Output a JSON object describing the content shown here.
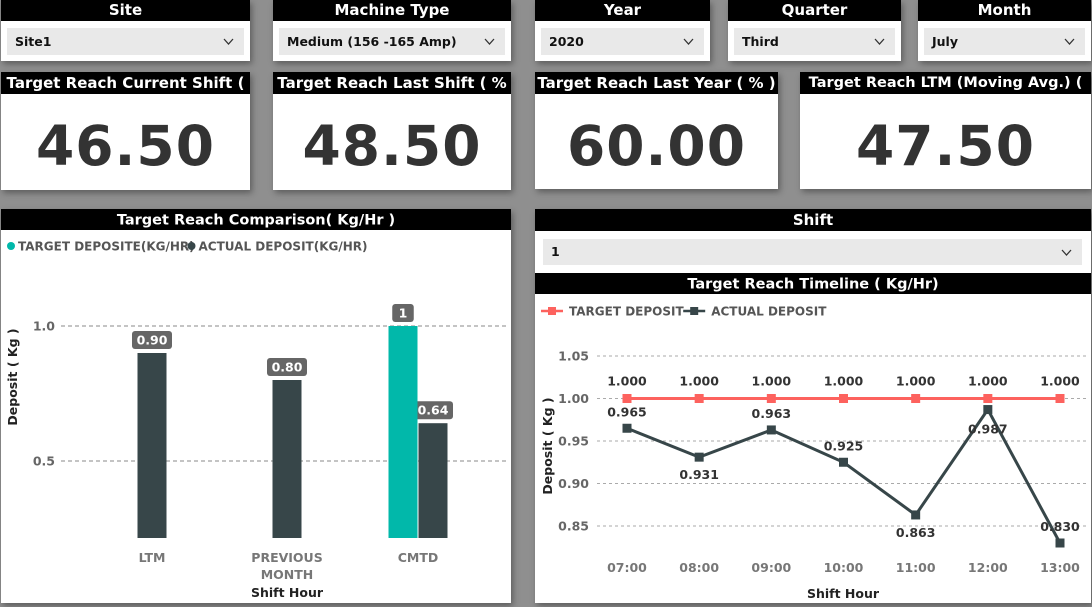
{
  "slicers": {
    "site": {
      "title": "Site",
      "value": "Site1"
    },
    "machine": {
      "title": "Machine Type",
      "value": "Medium (156 -165 Amp)"
    },
    "year": {
      "title": "Year",
      "value": "2020"
    },
    "quarter": {
      "title": "Quarter",
      "value": "Third"
    },
    "month": {
      "title": "Month",
      "value": "July"
    },
    "shift": {
      "title": "Shift",
      "value": "1"
    }
  },
  "kpis": {
    "current_shift": {
      "title": "Target Reach Current Shift ( % )",
      "value": "46.50"
    },
    "last_shift": {
      "title": "Target Reach Last Shift ( % )",
      "value": "48.50"
    },
    "last_year": {
      "title": "Target Reach Last Year ( % )",
      "value": "60.00"
    },
    "ltm": {
      "title": "Target Reach LTM (Moving Avg.) ( % )",
      "value": "47.50"
    }
  },
  "colors": {
    "teal": "#01b8aa",
    "dark": "#374649",
    "target_line": "#fd625e"
  },
  "chart_data": [
    {
      "type": "bar",
      "title": "Target Reach Comparison( Kg/Hr )",
      "xlabel": "Shift Hour",
      "ylabel": "Deposit ( Kg )",
      "ylim": [
        0,
        1.15
      ],
      "yticks": [
        "0.5",
        "1.0"
      ],
      "categories": [
        "LTM",
        "PREVIOUS MONTH",
        "CMTD"
      ],
      "category_lines": [
        [
          "LTM"
        ],
        [
          "PREVIOUS",
          "MONTH"
        ],
        [
          "CMTD"
        ]
      ],
      "legend_position": "top-left",
      "series": [
        {
          "name": "TARGET DEPOSITE(KG/HR)",
          "values": [
            null,
            null,
            1
          ],
          "labels": [
            "",
            "",
            "1"
          ]
        },
        {
          "name": "ACTUAL DEPOSIT(KG/HR)",
          "values": [
            0.9,
            0.8,
            0.64
          ],
          "labels": [
            "0.90",
            "0.80",
            "0.64"
          ]
        }
      ]
    },
    {
      "type": "line",
      "title": "Target Reach Timeline ( Kg/Hr)",
      "xlabel": "Shift Hour",
      "ylabel": "Deposit ( Kg )",
      "ylim": [
        0.82,
        1.06
      ],
      "yticks": [
        "0.85",
        "0.90",
        "0.95",
        "1.00",
        "1.05"
      ],
      "categories": [
        "07:00",
        "08:00",
        "09:00",
        "10:00",
        "11:00",
        "12:00",
        "13:00"
      ],
      "legend_position": "top-left",
      "series": [
        {
          "name": "TARGET DEPOSIT",
          "values": [
            1.0,
            1.0,
            1.0,
            1.0,
            1.0,
            1.0,
            1.0
          ],
          "labels": [
            "1.000",
            "1.000",
            "1.000",
            "1.000",
            "1.000",
            "1.000",
            "1.000"
          ]
        },
        {
          "name": "ACTUAL DEPOSIT",
          "values": [
            0.965,
            0.931,
            0.963,
            0.925,
            0.863,
            0.987,
            0.83
          ],
          "labels": [
            "0.965",
            "0.931",
            "0.963",
            "0.925",
            "0.863",
            "0.987",
            "0.830"
          ]
        }
      ]
    }
  ]
}
